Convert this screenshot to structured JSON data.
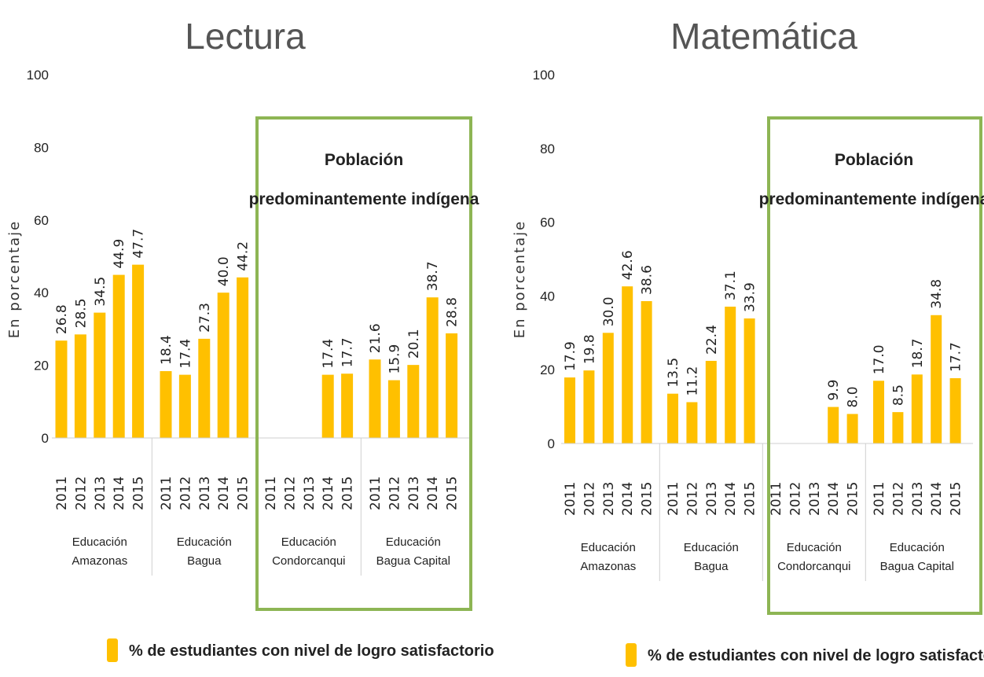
{
  "colors": {
    "bar": "#FFC000",
    "highlight_box": "#8DB554",
    "separator": "#cfcfcf"
  },
  "chart_data": [
    {
      "type": "bar",
      "title": "Lectura",
      "ylabel": "En porcentaje",
      "ylim": [
        0,
        100
      ],
      "yticks": [
        "0",
        "20",
        "40",
        "60",
        "80",
        "100"
      ],
      "groups": [
        {
          "label_line1": "Educación",
          "label_line2": "Amazonas"
        },
        {
          "label_line1": "Educación",
          "label_line2": "Bagua"
        },
        {
          "label_line1": "Educación",
          "label_line2": "Condorcanqui"
        },
        {
          "label_line1": "Educación",
          "label_line2": "Bagua Capital"
        }
      ],
      "years": [
        "2011",
        "2012",
        "2013",
        "2014",
        "2015"
      ],
      "values": [
        [
          26.8,
          28.5,
          34.5,
          44.9,
          47.7
        ],
        [
          18.4,
          17.4,
          27.3,
          40.0,
          44.2
        ],
        [
          null,
          null,
          null,
          17.4,
          17.7
        ],
        [
          21.6,
          15.9,
          20.1,
          38.7,
          28.8
        ]
      ],
      "value_labels": [
        [
          "26.8",
          "28.5",
          "34.5",
          "44.9",
          "47.7"
        ],
        [
          "18.4",
          "17.4",
          "27.3",
          "40.0",
          "44.2"
        ],
        [
          "",
          "",
          "",
          "17.4",
          "17.7"
        ],
        [
          "21.6",
          "15.9",
          "20.1",
          "38.7",
          "28.8"
        ]
      ],
      "annotation": {
        "line1": "Población",
        "line2": "predominantemente indígena"
      },
      "legend": "% de estudiantes con nivel de logro satisfactorio"
    },
    {
      "type": "bar",
      "title": "Matemática",
      "ylabel": "En porcentaje",
      "ylim": [
        0,
        100
      ],
      "yticks": [
        "0",
        "20",
        "40",
        "60",
        "80",
        "100"
      ],
      "groups": [
        {
          "label_line1": "Educación",
          "label_line2": "Amazonas"
        },
        {
          "label_line1": "Educación",
          "label_line2": "Bagua"
        },
        {
          "label_line1": "Educación",
          "label_line2": "Condorcanqui"
        },
        {
          "label_line1": "Educación",
          "label_line2": "Bagua Capital"
        }
      ],
      "years": [
        "2011",
        "2012",
        "2013",
        "2014",
        "2015"
      ],
      "values": [
        [
          17.9,
          19.8,
          30.0,
          42.6,
          38.6
        ],
        [
          13.5,
          11.2,
          22.4,
          37.1,
          33.9
        ],
        [
          null,
          null,
          null,
          9.9,
          8.0
        ],
        [
          17.0,
          8.5,
          18.7,
          34.8,
          17.7
        ]
      ],
      "value_labels": [
        [
          "17.9",
          "19.8",
          "30.0",
          "42.6",
          "38.6"
        ],
        [
          "13.5",
          "11.2",
          "22.4",
          "37.1",
          "33.9"
        ],
        [
          "",
          "",
          "",
          "9.9",
          "8.0"
        ],
        [
          "17.0",
          "8.5",
          "18.7",
          "34.8",
          "17.7"
        ]
      ],
      "annotation": {
        "line1": "Población",
        "line2": "predominantemente indígena"
      },
      "legend": "% de estudiantes con nivel de logro satisfactorio"
    }
  ]
}
